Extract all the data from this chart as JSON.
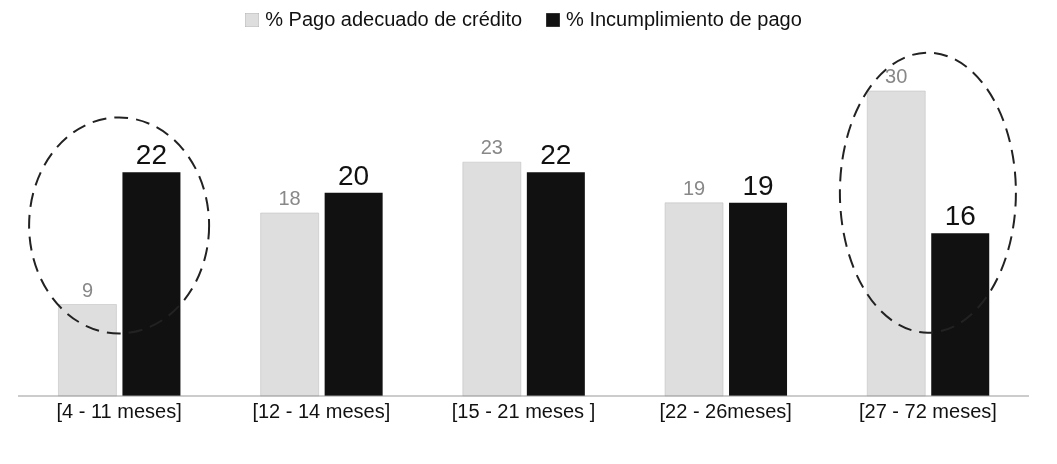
{
  "chart_data": {
    "type": "bar",
    "categories": [
      "[4 - 11 meses]",
      "[12 - 14 meses]",
      "[15 - 21 meses ]",
      "[22 - 26meses]",
      "[27 - 72 meses]"
    ],
    "series": [
      {
        "name": "% Pago adecuado de crédito",
        "color": "#dedede",
        "values": [
          9,
          18,
          23,
          19,
          30
        ]
      },
      {
        "name": "% Incumplimiento de pago",
        "color": "#111111",
        "values": [
          22,
          20,
          22,
          19,
          16
        ]
      }
    ],
    "data_labels": true,
    "legend": "top"
  }
}
